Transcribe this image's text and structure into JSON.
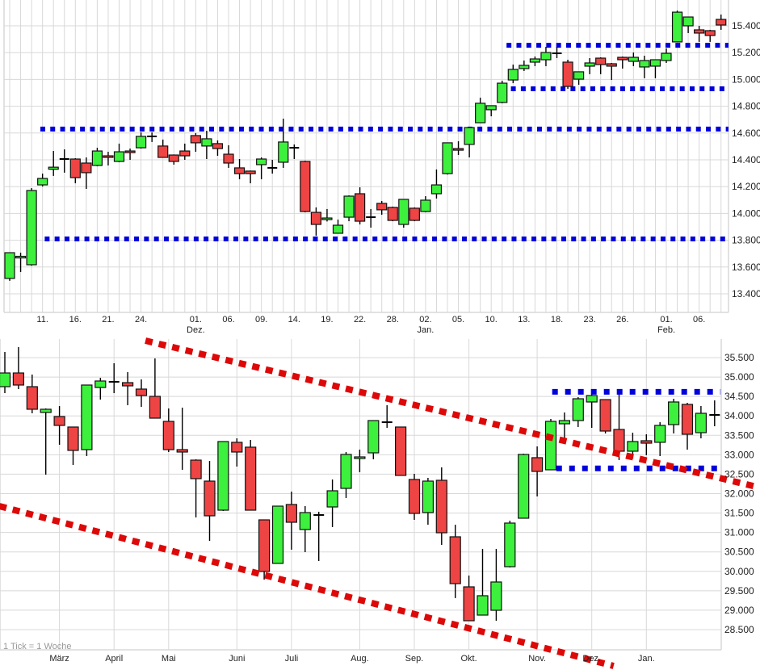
{
  "colors": {
    "up": "#3df03d",
    "down": "#ee4444",
    "doji": "#000000",
    "support": "#0000dd",
    "trend": "#dd0808",
    "grid": "#d8d8d8"
  },
  "chart_data": [
    {
      "type": "candlestick",
      "title": "",
      "interval": "daily",
      "ylim": [
        13400,
        15400
      ],
      "y_ticks": [
        {
          "label": "15.400",
          "value": 15400
        },
        {
          "label": "15.200",
          "value": 15200
        },
        {
          "label": "15.000",
          "value": 15000
        },
        {
          "label": "14.800",
          "value": 14800
        },
        {
          "label": "14.600",
          "value": 14600
        },
        {
          "label": "14.400",
          "value": 14400
        },
        {
          "label": "14.200",
          "value": 14200
        },
        {
          "label": "14.000",
          "value": 14000
        },
        {
          "label": "13.800",
          "value": 13800
        },
        {
          "label": "13.600",
          "value": 13600
        },
        {
          "label": "13.400",
          "value": 13400
        }
      ],
      "x_ticks": [
        {
          "label": "11.",
          "index": 3
        },
        {
          "label": "16.",
          "index": 6
        },
        {
          "label": "21.",
          "index": 9
        },
        {
          "label": "24.",
          "index": 12
        },
        {
          "label": "01.",
          "index": 17,
          "month": "Dez."
        },
        {
          "label": "06.",
          "index": 20
        },
        {
          "label": "09.",
          "index": 23
        },
        {
          "label": "14.",
          "index": 26
        },
        {
          "label": "19.",
          "index": 29
        },
        {
          "label": "22.",
          "index": 32
        },
        {
          "label": "28.",
          "index": 35
        },
        {
          "label": "02.",
          "index": 38,
          "month": "Jan."
        },
        {
          "label": "05.",
          "index": 41
        },
        {
          "label": "10.",
          "index": 44
        },
        {
          "label": "13.",
          "index": 47
        },
        {
          "label": "18.",
          "index": 50
        },
        {
          "label": "23.",
          "index": 53
        },
        {
          "label": "26.",
          "index": 56
        },
        {
          "label": "01.",
          "index": 60,
          "month": "Feb."
        },
        {
          "label": "06.",
          "index": 63
        }
      ],
      "candles_ohlc": [
        [
          13515,
          13707,
          13497,
          13707
        ],
        [
          13670,
          13707,
          13563,
          13680
        ],
        [
          13617,
          14189,
          13610,
          14171
        ],
        [
          14213,
          14297,
          14201,
          14261
        ],
        [
          14330,
          14466,
          14280,
          14345
        ],
        [
          14406,
          14478,
          14304,
          14406
        ],
        [
          14406,
          14412,
          14225,
          14267
        ],
        [
          14376,
          14418,
          14183,
          14304
        ],
        [
          14358,
          14490,
          14352,
          14466
        ],
        [
          14430,
          14460,
          14358,
          14418
        ],
        [
          14388,
          14521,
          14382,
          14460
        ],
        [
          14466,
          14484,
          14400,
          14460
        ],
        [
          14490,
          14605,
          14484,
          14575
        ],
        [
          14575,
          14605,
          14533,
          14575
        ],
        [
          14503,
          14551,
          14418,
          14418
        ],
        [
          14436,
          14440,
          14364,
          14388
        ],
        [
          14466,
          14521,
          14400,
          14430
        ],
        [
          14581,
          14599,
          14460,
          14527
        ],
        [
          14503,
          14617,
          14406,
          14557
        ],
        [
          14521,
          14545,
          14430,
          14484
        ],
        [
          14442,
          14509,
          14340,
          14376
        ],
        [
          14340,
          14406,
          14255,
          14297
        ],
        [
          14316,
          14320,
          14225,
          14297
        ],
        [
          14364,
          14418,
          14255,
          14406
        ],
        [
          14340,
          14400,
          14297,
          14340
        ],
        [
          14382,
          14707,
          14340,
          14533
        ],
        [
          14490,
          14515,
          14406,
          14490
        ],
        [
          14388,
          14394,
          14008,
          14014
        ],
        [
          14008,
          14045,
          13834,
          13918
        ],
        [
          13954,
          14033,
          13940,
          13966
        ],
        [
          13852,
          13954,
          13852,
          13912
        ],
        [
          13972,
          14135,
          13942,
          14129
        ],
        [
          14147,
          14195,
          13918,
          13942
        ],
        [
          13972,
          14033,
          13894,
          13972
        ],
        [
          14075,
          14093,
          13990,
          14027
        ],
        [
          14045,
          14051,
          13942,
          13948
        ],
        [
          13918,
          14105,
          13894,
          14105
        ],
        [
          14039,
          14045,
          13942,
          13948
        ],
        [
          14014,
          14129,
          14008,
          14099
        ],
        [
          14147,
          14328,
          14111,
          14213
        ],
        [
          14297,
          14527,
          14290,
          14527
        ],
        [
          14484,
          14539,
          14436,
          14472
        ],
        [
          14515,
          14641,
          14418,
          14641
        ],
        [
          14677,
          14864,
          14677,
          14822
        ],
        [
          14774,
          14804,
          14725,
          14804
        ],
        [
          14828,
          14990,
          14822,
          14972
        ],
        [
          14996,
          15111,
          14972,
          15075
        ],
        [
          15081,
          15141,
          15063,
          15105
        ],
        [
          15129,
          15171,
          15099,
          15153
        ],
        [
          15147,
          15243,
          15099,
          15201
        ],
        [
          15195,
          15243,
          15159,
          15195
        ],
        [
          15129,
          15147,
          14930,
          14948
        ],
        [
          15002,
          15057,
          14960,
          15057
        ],
        [
          15099,
          15159,
          15039,
          15123
        ],
        [
          15159,
          15165,
          15039,
          15111
        ],
        [
          15117,
          15123,
          14996,
          15099
        ],
        [
          15165,
          15171,
          15081,
          15147
        ],
        [
          15135,
          15201,
          15099,
          15165
        ],
        [
          15093,
          15177,
          15009,
          15141
        ],
        [
          15099,
          15147,
          15009,
          15147
        ],
        [
          15141,
          15231,
          15123,
          15195
        ],
        [
          15280,
          15514,
          15280,
          15502
        ],
        [
          15400,
          15466,
          15346,
          15466
        ],
        [
          15370,
          15400,
          15280,
          15346
        ],
        [
          15364,
          15370,
          15280,
          15328
        ],
        [
          15448,
          15484,
          15370,
          15406
        ]
      ],
      "levels": [
        {
          "name": "resistance-upper",
          "value": 15255,
          "from_index": 45.4
        },
        {
          "name": "support-upper",
          "value": 14930,
          "from_index": 45.8
        },
        {
          "name": "resistance-mid",
          "value": 14630,
          "from_index": 2.8
        },
        {
          "name": "support-lower",
          "value": 13810,
          "from_index": 3.2
        }
      ]
    },
    {
      "type": "candlestick",
      "title": "",
      "interval": "weekly",
      "note": "1 Tick = 1 Woche",
      "ylim": [
        28500,
        35500
      ],
      "y_ticks": [
        {
          "label": "35.500",
          "value": 35500
        },
        {
          "label": "35.000",
          "value": 35000
        },
        {
          "label": "34.500",
          "value": 34500
        },
        {
          "label": "34.000",
          "value": 34000
        },
        {
          "label": "33.500",
          "value": 33500
        },
        {
          "label": "33.000",
          "value": 33000
        },
        {
          "label": "32.500",
          "value": 32500
        },
        {
          "label": "32.000",
          "value": 32000
        },
        {
          "label": "31.500",
          "value": 31500
        },
        {
          "label": "31.000",
          "value": 31000
        },
        {
          "label": "30.500",
          "value": 30500
        },
        {
          "label": "30.000",
          "value": 30000
        },
        {
          "label": "29.500",
          "value": 29500
        },
        {
          "label": "29.000",
          "value": 29000
        },
        {
          "label": "28.500",
          "value": 28500
        }
      ],
      "x_ticks": [
        {
          "label": "März",
          "index": 4
        },
        {
          "label": "April",
          "index": 8
        },
        {
          "label": "Mai",
          "index": 12
        },
        {
          "label": "Juni",
          "index": 17
        },
        {
          "label": "Juli",
          "index": 21
        },
        {
          "label": "Aug.",
          "index": 26
        },
        {
          "label": "Sep.",
          "index": 30
        },
        {
          "label": "Okt.",
          "index": 34
        },
        {
          "label": "Nov.",
          "index": 39
        },
        {
          "label": "Dez.",
          "index": 43
        },
        {
          "label": "Jan.",
          "index": 47
        }
      ],
      "candles_ohlc": [
        [
          34752,
          35645,
          34586,
          35105
        ],
        [
          35105,
          35770,
          34690,
          34794
        ],
        [
          34752,
          35064,
          34067,
          34171
        ],
        [
          34088,
          34192,
          32488,
          34171
        ],
        [
          33984,
          34254,
          33257,
          33755
        ],
        [
          33714,
          33720,
          32738,
          33112
        ],
        [
          33132,
          34794,
          32966,
          34794
        ],
        [
          34731,
          34981,
          34420,
          34898
        ],
        [
          34877,
          35355,
          34586,
          34877
        ],
        [
          34856,
          35126,
          34275,
          34773
        ],
        [
          34690,
          34939,
          34233,
          34524
        ],
        [
          34503,
          35479,
          33942,
          33942
        ],
        [
          33859,
          34192,
          33070,
          33132
        ],
        [
          33132,
          34212,
          32613,
          33070
        ],
        [
          32862,
          32882,
          31387,
          32385
        ],
        [
          32322,
          32841,
          30785,
          31429
        ],
        [
          31574,
          33340,
          31554,
          33340
        ],
        [
          33320,
          33423,
          32696,
          33070
        ],
        [
          33195,
          33382,
          31574,
          31574
        ],
        [
          31325,
          31330,
          29788,
          29996
        ],
        [
          30204,
          31678,
          30204,
          31678
        ],
        [
          31720,
          32052,
          30557,
          31263
        ],
        [
          31076,
          31678,
          30494,
          31512
        ],
        [
          31450,
          31533,
          30266,
          31450
        ],
        [
          31657,
          32364,
          31138,
          32073
        ],
        [
          32135,
          33070,
          31886,
          33008
        ],
        [
          32904,
          33132,
          32551,
          32945
        ],
        [
          33049,
          33880,
          32883,
          33880
        ],
        [
          33838,
          34275,
          33693,
          33838
        ],
        [
          33714,
          33720,
          32468,
          32468
        ],
        [
          32364,
          32509,
          31325,
          31491
        ],
        [
          31512,
          32405,
          31200,
          32322
        ],
        [
          32343,
          32675,
          30681,
          30993
        ],
        [
          30889,
          31200,
          29311,
          29684
        ],
        [
          29601,
          29892,
          28729,
          28729
        ],
        [
          28874,
          30578,
          28874,
          29373
        ],
        [
          28998,
          30578,
          28729,
          29726
        ],
        [
          30120,
          31304,
          30100,
          31242
        ],
        [
          31367,
          33028,
          31367,
          33008
        ],
        [
          32925,
          33215,
          31928,
          32571
        ],
        [
          32613,
          33921,
          32613,
          33859
        ],
        [
          33797,
          34088,
          33402,
          33880
        ],
        [
          33880,
          34482,
          33714,
          34441
        ],
        [
          34358,
          34628,
          33693,
          34524
        ],
        [
          34420,
          34425,
          33548,
          33610
        ],
        [
          33651,
          34628,
          32862,
          33091
        ],
        [
          33091,
          33568,
          32904,
          33340
        ],
        [
          33361,
          33527,
          32987,
          33298
        ],
        [
          33320,
          33838,
          32966,
          33755
        ],
        [
          33776,
          34441,
          33548,
          34358
        ],
        [
          34296,
          34337,
          33132,
          33527
        ],
        [
          33568,
          34254,
          33423,
          34067
        ],
        [
          34025,
          34400,
          33734,
          34025
        ]
      ],
      "levels": [
        {
          "name": "resistance",
          "value": 34620,
          "from_index": 40.1,
          "to_index": 52.2
        },
        {
          "name": "support",
          "value": 32650,
          "from_index": 40.4,
          "to_index": 52.2
        }
      ],
      "trendlines": [
        {
          "name": "downtrend-upper",
          "points": [
            [
              10.3,
              35936
            ],
            [
              55.3,
              32156
            ]
          ]
        },
        {
          "name": "downtrend-lower",
          "points": [
            [
              -0.4,
              31678
            ],
            [
              44.6,
              27566
            ]
          ]
        }
      ]
    }
  ]
}
